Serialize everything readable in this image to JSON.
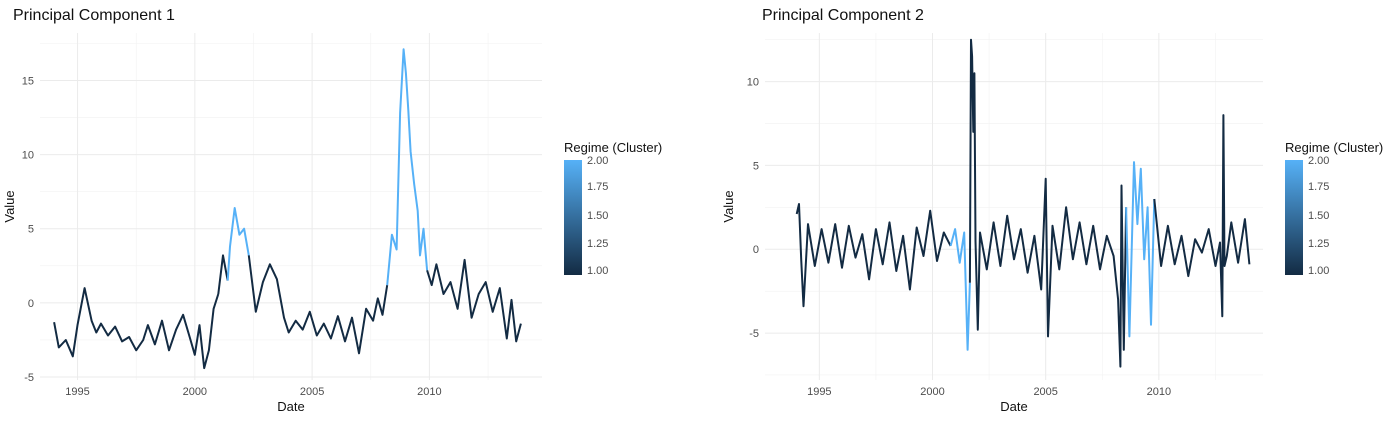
{
  "chart_data": [
    {
      "type": "line",
      "title": "Principal Component 1",
      "xlabel": "Date",
      "ylabel": "Value",
      "xlim": [
        1993.4,
        2014.8
      ],
      "ylim": [
        -5.2,
        18.2
      ],
      "x_ticks": [
        1995,
        2000,
        2005,
        2010
      ],
      "x_tick_labels": [
        "1995",
        "2000",
        "2005",
        "2010"
      ],
      "y_ticks": [
        -5,
        0,
        5,
        10,
        15
      ],
      "y_tick_labels": [
        "-5",
        "0",
        "5",
        "10",
        "15"
      ],
      "grid": true,
      "color_scale": {
        "title": "Regime (Cluster)",
        "min": 1.0,
        "max": 2.0,
        "low_color": "#132B43",
        "high_color": "#56B1F7",
        "breaks": [
          "2.00",
          "1.75",
          "1.50",
          "1.25",
          "1.00"
        ]
      },
      "series": [
        {
          "x": [
            1994.0,
            1994.2,
            1994.5,
            1994.8,
            1995.0,
            1995.3,
            1995.6,
            1995.8,
            1996.0,
            1996.3,
            1996.6,
            1996.9,
            1997.2,
            1997.5,
            1997.8,
            1998.0,
            1998.3,
            1998.6,
            1998.9,
            1999.2,
            1999.5,
            1999.8,
            2000.0,
            2000.2,
            2000.4,
            2000.6,
            2000.8,
            2001.0
          ],
          "y": [
            -1.3,
            -3.0,
            -2.5,
            -3.6,
            -1.5,
            1.0,
            -1.2,
            -2.0,
            -1.4,
            -2.2,
            -1.6,
            -2.6,
            -2.3,
            -3.2,
            -2.5,
            -1.5,
            -2.8,
            -1.2,
            -3.2,
            -1.8,
            -0.8,
            -2.4,
            -3.5,
            -1.5,
            -4.4,
            -3.2,
            -0.4,
            0.6
          ],
          "cluster": 1
        },
        {
          "x": [
            2001.0,
            2001.2,
            2001.4
          ],
          "y": [
            0.6,
            3.2,
            1.5
          ],
          "cluster": 1
        },
        {
          "x": [
            2001.4,
            2001.5,
            2001.7,
            2001.9,
            2002.1,
            2002.3
          ],
          "y": [
            1.5,
            3.8,
            6.4,
            4.6,
            5.0,
            3.2
          ],
          "cluster": 2
        },
        {
          "x": [
            2002.3,
            2002.6,
            2002.9,
            2003.2,
            2003.5,
            2003.8,
            2004.0,
            2004.3,
            2004.6,
            2004.9,
            2005.2,
            2005.5,
            2005.8,
            2006.1,
            2006.4,
            2006.7,
            2007.0,
            2007.3,
            2007.6,
            2007.8,
            2008.0,
            2008.2
          ],
          "y": [
            3.2,
            -0.6,
            1.4,
            2.6,
            1.6,
            -1.0,
            -2.0,
            -1.2,
            -1.8,
            -0.6,
            -2.2,
            -1.4,
            -2.4,
            -0.9,
            -2.6,
            -1.0,
            -3.4,
            -0.4,
            -1.2,
            0.3,
            -0.8,
            1.2
          ],
          "cluster": 1
        },
        {
          "x": [
            2008.2,
            2008.4,
            2008.6,
            2008.75,
            2008.9,
            2009.0,
            2009.1,
            2009.2,
            2009.35,
            2009.5,
            2009.6,
            2009.75,
            2009.9
          ],
          "y": [
            1.2,
            4.6,
            3.6,
            12.8,
            17.1,
            15.5,
            13.0,
            10.2,
            8.0,
            6.2,
            3.2,
            5.0,
            2.2
          ],
          "cluster": 2
        },
        {
          "x": [
            2009.9,
            2010.1,
            2010.3,
            2010.6,
            2010.9,
            2011.2,
            2011.5,
            2011.8,
            2012.1,
            2012.4,
            2012.7,
            2013.0,
            2013.3,
            2013.5,
            2013.7,
            2013.9
          ],
          "y": [
            2.2,
            1.2,
            2.6,
            0.6,
            1.4,
            -0.4,
            2.9,
            -1.0,
            0.6,
            1.4,
            -0.6,
            1.0,
            -2.4,
            0.2,
            -2.6,
            -1.4
          ],
          "cluster": 1
        }
      ]
    },
    {
      "type": "line",
      "title": "Principal Component 2",
      "xlabel": "Date",
      "ylabel": "Value",
      "xlim": [
        1992.6,
        2014.6
      ],
      "ylim": [
        -7.8,
        12.9
      ],
      "x_ticks": [
        1995,
        2000,
        2005,
        2010
      ],
      "x_tick_labels": [
        "1995",
        "2000",
        "2005",
        "2010"
      ],
      "y_ticks": [
        -5,
        0,
        5,
        10
      ],
      "y_tick_labels": [
        "-5",
        "0",
        "5",
        "10"
      ],
      "grid": true,
      "color_scale": {
        "title": "Regime (Cluster)",
        "min": 1.0,
        "max": 2.0,
        "low_color": "#132B43",
        "high_color": "#56B1F7",
        "breaks": [
          "2.00",
          "1.75",
          "1.50",
          "1.25",
          "1.00"
        ]
      },
      "series": [
        {
          "x": [
            1994.0,
            1994.1,
            1994.2,
            1994.3,
            1994.5,
            1994.8,
            1995.1,
            1995.4,
            1995.7,
            1996.0,
            1996.3,
            1996.6,
            1996.9,
            1997.2,
            1997.5,
            1997.8,
            1998.1,
            1998.4,
            1998.7,
            1999.0,
            1999.3,
            1999.6,
            1999.9,
            2000.2,
            2000.5,
            2000.8
          ],
          "y": [
            2.1,
            2.7,
            -0.6,
            -3.4,
            1.5,
            -1.0,
            1.2,
            -0.8,
            1.5,
            -1.1,
            1.4,
            -0.5,
            0.9,
            -1.8,
            1.2,
            -0.9,
            1.6,
            -1.3,
            0.8,
            -2.4,
            1.3,
            -0.4,
            2.3,
            -0.7,
            1.0,
            0.2
          ],
          "cluster": 1
        },
        {
          "x": [
            2000.8,
            2001.0,
            2001.2,
            2001.4,
            2001.55,
            2001.65
          ],
          "y": [
            0.2,
            1.2,
            -0.8,
            1.0,
            -6.0,
            -2.0
          ],
          "cluster": 2
        },
        {
          "x": [
            2001.65,
            2001.7,
            2001.75,
            2001.8,
            2001.85,
            2001.9,
            2002.0,
            2002.1,
            2002.4,
            2002.7,
            2003.0,
            2003.3,
            2003.6,
            2003.9,
            2004.2,
            2004.5,
            2004.8,
            2005.0,
            2005.1,
            2005.3,
            2005.6,
            2005.9,
            2006.2,
            2006.5,
            2006.8,
            2007.1,
            2007.4,
            2007.7,
            2008.0,
            2008.2,
            2008.3,
            2008.35,
            2008.45,
            2008.55
          ],
          "y": [
            -2.0,
            12.5,
            11.5,
            7.0,
            10.5,
            0.5,
            -4.8,
            1.0,
            -1.2,
            1.6,
            -1.0,
            2.0,
            -0.6,
            1.2,
            -1.4,
            0.8,
            -2.4,
            4.2,
            -5.2,
            1.4,
            -1.2,
            2.5,
            -0.6,
            1.6,
            -0.9,
            1.4,
            -1.2,
            0.8,
            -0.4,
            -3.0,
            -7.0,
            3.8,
            -6.0,
            2.5
          ],
          "cluster": 1
        },
        {
          "x": [
            2008.55,
            2008.7,
            2008.9,
            2009.05,
            2009.2,
            2009.35,
            2009.5,
            2009.65,
            2009.8
          ],
          "y": [
            2.5,
            -5.2,
            5.2,
            1.5,
            4.8,
            -0.6,
            2.5,
            -4.5,
            3.0
          ],
          "cluster": 2
        },
        {
          "x": [
            2009.8,
            2010.1,
            2010.4,
            2010.7,
            2011.0,
            2011.3,
            2011.6,
            2011.9,
            2012.2,
            2012.5,
            2012.7,
            2012.8,
            2012.85,
            2012.9,
            2013.0,
            2013.2,
            2013.5,
            2013.8,
            2014.0
          ],
          "y": [
            3.0,
            -1.0,
            1.4,
            -0.9,
            0.8,
            -1.6,
            0.6,
            -0.2,
            1.2,
            -1.0,
            0.4,
            -4.0,
            8.0,
            -1.0,
            -0.4,
            1.6,
            -0.8,
            1.8,
            -0.9
          ],
          "cluster": 1
        }
      ]
    }
  ]
}
